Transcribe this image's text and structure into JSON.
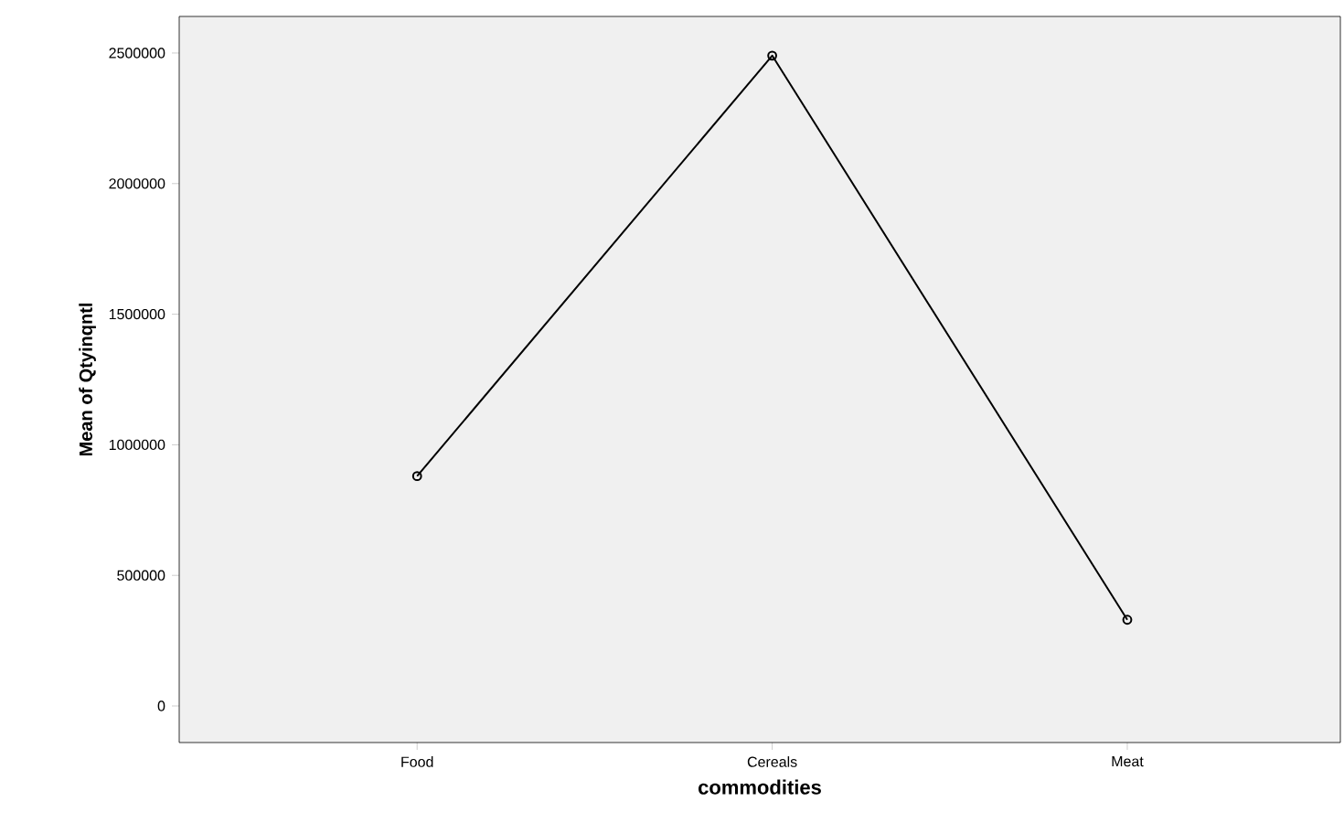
{
  "chart_data": {
    "type": "line",
    "xlabel": "commodities",
    "ylabel": "Mean of Qtyinqntl",
    "categories": [
      "Food",
      "Cereals",
      "Meat"
    ],
    "values": [
      880000,
      2490000,
      330000
    ],
    "color": "#000000",
    "ylim": [
      -140000,
      2640000
    ],
    "yticks": [
      0,
      500000,
      1000000,
      1500000,
      2000000,
      2500000
    ],
    "marker": "circle",
    "line_style": "solid"
  }
}
